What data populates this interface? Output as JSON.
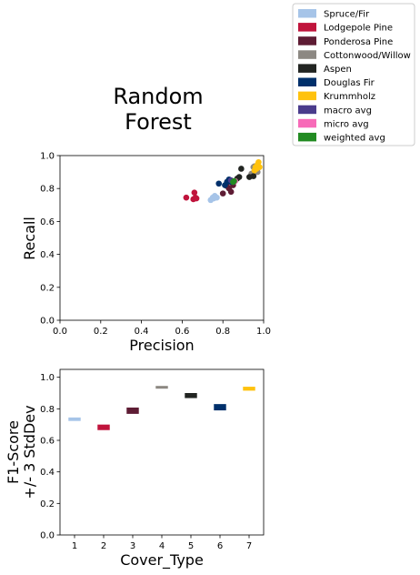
{
  "chart_data": [
    {
      "type": "scatter",
      "title_lines": [
        "Random",
        "Forest"
      ],
      "xlabel": "Precision",
      "ylabel": "Recall",
      "xlim": [
        0,
        1
      ],
      "ylim": [
        0,
        1
      ],
      "xticks": [
        0.0,
        0.2,
        0.4,
        0.6,
        0.8,
        1.0
      ],
      "yticks": [
        0.0,
        0.2,
        0.4,
        0.6,
        0.8,
        1.0
      ],
      "grid": false,
      "series": [
        {
          "name": "Spruce/Fir",
          "color": "#a6c4e8",
          "points": [
            [
              0.74,
              0.73
            ],
            [
              0.75,
              0.745
            ],
            [
              0.76,
              0.755
            ],
            [
              0.77,
              0.745
            ],
            [
              0.755,
              0.74
            ]
          ]
        },
        {
          "name": "Lodgepole Pine",
          "color": "#c0143c",
          "points": [
            [
              0.62,
              0.745
            ],
            [
              0.655,
              0.735
            ],
            [
              0.67,
              0.74
            ],
            [
              0.66,
              0.775
            ],
            [
              0.665,
              0.745
            ]
          ]
        },
        {
          "name": "Ponderosa Pine",
          "color": "#5e1c34",
          "points": [
            [
              0.8,
              0.77
            ],
            [
              0.83,
              0.8
            ],
            [
              0.84,
              0.78
            ],
            [
              0.82,
              0.815
            ],
            [
              0.85,
              0.82
            ]
          ]
        },
        {
          "name": "Cottonwood/Willow",
          "color": "#8c8882",
          "points": [
            [
              0.95,
              0.93
            ],
            [
              0.96,
              0.92
            ],
            [
              0.97,
              0.9
            ],
            [
              0.94,
              0.89
            ],
            [
              0.955,
              0.935
            ]
          ]
        },
        {
          "name": "Aspen",
          "color": "#222522",
          "points": [
            [
              0.89,
              0.92
            ],
            [
              0.88,
              0.87
            ],
            [
              0.93,
              0.87
            ],
            [
              0.95,
              0.875
            ],
            [
              0.87,
              0.86
            ]
          ]
        },
        {
          "name": "Douglas Fir",
          "color": "#00306b",
          "points": [
            [
              0.78,
              0.83
            ],
            [
              0.82,
              0.84
            ],
            [
              0.83,
              0.855
            ],
            [
              0.81,
              0.82
            ],
            [
              0.84,
              0.84
            ]
          ]
        },
        {
          "name": "Krummholz",
          "color": "#ffc20e",
          "points": [
            [
              0.96,
              0.93
            ],
            [
              0.97,
              0.945
            ],
            [
              0.975,
              0.96
            ],
            [
              0.98,
              0.93
            ],
            [
              0.955,
              0.91
            ],
            [
              0.965,
              0.92
            ]
          ]
        },
        {
          "name": "macro avg",
          "color": "#4a3c8c",
          "points": [
            [
              0.84,
              0.85
            ],
            [
              0.85,
              0.84
            ]
          ]
        },
        {
          "name": "micro avg",
          "color": "#f76ab8",
          "points": [
            [
              0.86,
              0.845
            ]
          ]
        },
        {
          "name": "weighted avg",
          "color": "#228b22",
          "points": [
            [
              0.855,
              0.845
            ],
            [
              0.85,
              0.84
            ]
          ]
        }
      ]
    },
    {
      "type": "bar",
      "xlabel": "Cover_Type",
      "ylabel_lines": [
        "F1-Score",
        "+/- 3 StdDev"
      ],
      "xlim": [
        0.5,
        7.5
      ],
      "ylim": [
        0,
        1.05
      ],
      "xticks": [
        1,
        2,
        3,
        4,
        5,
        6,
        7
      ],
      "yticks": [
        0.0,
        0.2,
        0.4,
        0.6,
        0.8,
        1.0
      ],
      "bars": [
        {
          "x": 1,
          "low": 0.723,
          "high": 0.745,
          "color": "#a6c4e8"
        },
        {
          "x": 2,
          "low": 0.665,
          "high": 0.7,
          "color": "#c0143c"
        },
        {
          "x": 3,
          "low": 0.768,
          "high": 0.808,
          "color": "#5e1c34"
        },
        {
          "x": 4,
          "low": 0.932,
          "high": 0.945,
          "color": "#8c8882"
        },
        {
          "x": 5,
          "low": 0.868,
          "high": 0.9,
          "color": "#222522"
        },
        {
          "x": 6,
          "low": 0.79,
          "high": 0.83,
          "color": "#00306b"
        },
        {
          "x": 7,
          "low": 0.915,
          "high": 0.94,
          "color": "#ffc20e"
        }
      ]
    }
  ],
  "legend": {
    "placement": "outside-top-right",
    "entries": [
      {
        "label": "Spruce/Fir",
        "color": "#a6c4e8"
      },
      {
        "label": "Lodgepole Pine",
        "color": "#c0143c"
      },
      {
        "label": "Ponderosa Pine",
        "color": "#5e1c34"
      },
      {
        "label": "Cottonwood/Willow",
        "color": "#8c8882"
      },
      {
        "label": "Aspen",
        "color": "#222522"
      },
      {
        "label": "Douglas Fir",
        "color": "#00306b"
      },
      {
        "label": "Krummholz",
        "color": "#ffc20e"
      },
      {
        "label": "macro avg",
        "color": "#4a3c8c"
      },
      {
        "label": "micro avg",
        "color": "#f76ab8"
      },
      {
        "label": "weighted avg",
        "color": "#228b22"
      }
    ]
  }
}
